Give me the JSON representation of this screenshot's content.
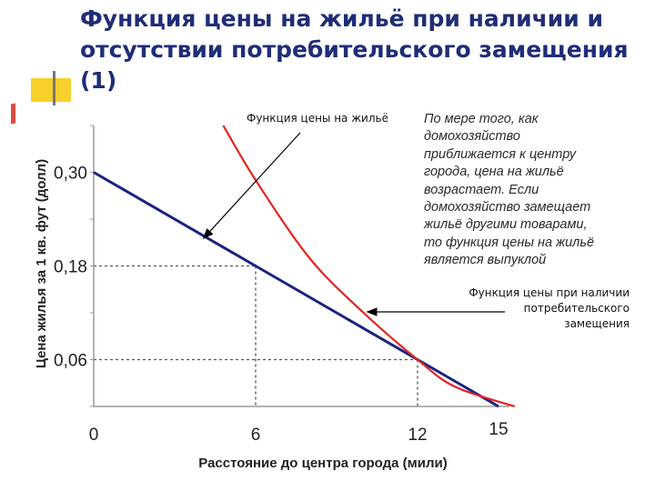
{
  "slide": {
    "title_lines": [
      "Функция цены на жильё при наличии и",
      "отсутствии потребительского замещения",
      "(1)"
    ],
    "note_lines": [
      "По мере того, как",
      "домохозяйство",
      "приближается к центру",
      "города, цена на жильё",
      "возрастает. Если",
      "домохозяйство замещает",
      "жильё другими товарами,",
      "то функция цены на жильё",
      "является выпуклой"
    ]
  },
  "chart_data": {
    "type": "line",
    "xlabel": "Расстояние до центра города (мили)",
    "ylabel": "Цена жилья за 1 кв. фут (долл)",
    "x_ticks": [
      "0",
      "6",
      "12",
      "15"
    ],
    "y_ticks": [
      "0,30",
      "0,18",
      "0,06"
    ],
    "xlim": [
      0,
      15
    ],
    "ylim": [
      0,
      0.36
    ],
    "series": [
      {
        "name": "Функция цены на жильё",
        "color": "#1a237e",
        "points": [
          [
            0,
            0.3
          ],
          [
            6,
            0.18
          ],
          [
            12,
            0.06
          ],
          [
            15,
            0.0
          ]
        ]
      },
      {
        "name": "Функция цены при наличии потребительского замещения",
        "color": "#e32222",
        "points": [
          [
            4.8,
            0.36
          ],
          [
            6,
            0.29
          ],
          [
            8,
            0.19
          ],
          [
            10,
            0.12
          ],
          [
            12,
            0.06
          ],
          [
            13.4,
            0.025
          ],
          [
            15.6,
            0.0
          ]
        ]
      }
    ],
    "reference_points": [
      [
        6,
        0.18
      ],
      [
        12,
        0.06
      ]
    ],
    "annotations": [
      {
        "text_lines": [
          "Функция цены на жильё"
        ],
        "target": [
          4,
          0.22
        ]
      },
      {
        "text_lines": [
          "Функция цены при наличии",
          "потребительского",
          "замещения"
        ],
        "target": [
          10,
          0.12
        ]
      }
    ]
  }
}
